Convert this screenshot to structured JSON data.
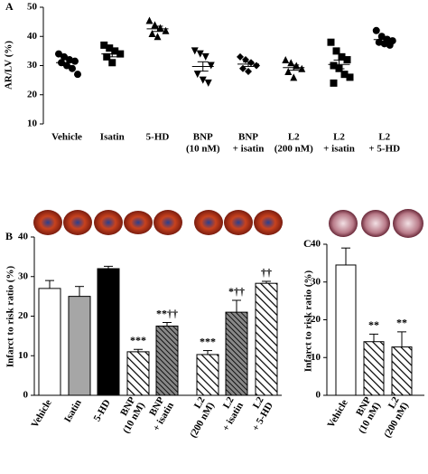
{
  "chart_data": [
    {
      "type": "dotplot",
      "panel": "A",
      "ylabel": "AR/LV (%)",
      "categories": [
        [
          "Vehicle"
        ],
        [
          "Isatin"
        ],
        [
          "5-HD"
        ],
        [
          "BNP",
          "(10 nM)"
        ],
        [
          "BNP",
          "+ isatin"
        ],
        [
          "L2",
          "(200 nM)"
        ],
        [
          "L2",
          "+ isatin"
        ],
        [
          "L2",
          "+ 5-HD"
        ]
      ],
      "points": [
        [
          34,
          33,
          32,
          31.5,
          31,
          30,
          29,
          27
        ],
        [
          37,
          36,
          35,
          34,
          33,
          31
        ],
        [
          45.5,
          44,
          43,
          42,
          41,
          40
        ],
        [
          35,
          34,
          33,
          30,
          27,
          25,
          24
        ],
        [
          33,
          32,
          31,
          30,
          29,
          28
        ],
        [
          32,
          31,
          30,
          29,
          28,
          26
        ],
        [
          38,
          35,
          33,
          32,
          30,
          29,
          27,
          26,
          24
        ],
        [
          42,
          40,
          39,
          38.5,
          38,
          37.5,
          37
        ]
      ],
      "means": [
        31,
        34,
        42.6,
        29.7,
        30.5,
        29.3,
        30.4,
        38.9
      ],
      "errors": [
        1,
        1,
        0.9,
        1.6,
        0.8,
        0.9,
        1.5,
        0.7
      ],
      "markers": [
        "circle",
        "square",
        "triangle",
        "triangle-down",
        "diamond",
        "triangle",
        "square",
        "circle"
      ],
      "color": "#000000",
      "ylim": [
        10,
        50
      ],
      "yticks": [
        10,
        20,
        30,
        40,
        50
      ]
    },
    {
      "type": "bar",
      "panel": "B",
      "ylabel": "Infarct to risk ratio (%)",
      "categories": [
        [
          "Vehicle"
        ],
        [
          "Isatin"
        ],
        [
          "5-HD"
        ],
        [
          "BNP",
          "(10 nM)"
        ],
        [
          "BNP",
          "+ isatin"
        ],
        [
          "L2",
          "(200 nM)"
        ],
        [
          "L2",
          "+ isatin"
        ],
        [
          "L2",
          "+ 5-HD"
        ]
      ],
      "values": [
        27,
        25,
        32,
        11,
        17.5,
        10.3,
        21,
        28.3
      ],
      "errors": [
        2,
        2.5,
        0.6,
        0.6,
        0.9,
        1,
        3,
        0.5
      ],
      "fills": [
        "#ffffff",
        "#a6a6a6",
        "#000000",
        "hatch",
        "dense-hatch",
        "hatch",
        "dense-hatch",
        "hatch"
      ],
      "annotations": [
        null,
        null,
        null,
        "***",
        "**††",
        "***",
        "*††",
        "††"
      ],
      "ylim": [
        0,
        40
      ],
      "yticks": [
        0,
        10,
        20,
        30,
        40
      ]
    },
    {
      "type": "bar",
      "panel": "C",
      "ylabel": "Infarct to risk ratio (%)",
      "categories": [
        [
          "Vehicle"
        ],
        [
          "BNP",
          "(10 nM)"
        ],
        [
          "L2",
          "(200 nM)"
        ]
      ],
      "values": [
        34.5,
        14.2,
        12.8
      ],
      "errors": [
        4.5,
        2,
        4
      ],
      "fills": [
        "#ffffff",
        "hatch",
        "hatch"
      ],
      "annotations": [
        null,
        "**",
        "**"
      ],
      "ylim": [
        0,
        40
      ],
      "yticks": [
        0,
        10,
        20,
        30,
        40
      ]
    }
  ]
}
